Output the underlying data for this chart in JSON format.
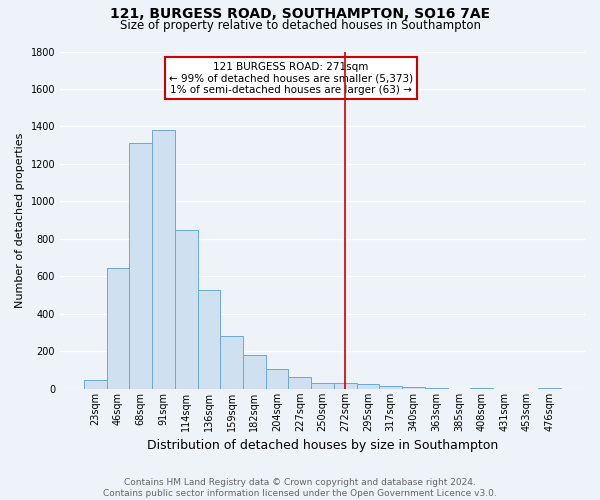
{
  "title": "121, BURGESS ROAD, SOUTHAMPTON, SO16 7AE",
  "subtitle": "Size of property relative to detached houses in Southampton",
  "xlabel": "Distribution of detached houses by size in Southampton",
  "ylabel": "Number of detached properties",
  "bar_labels": [
    "23sqm",
    "46sqm",
    "68sqm",
    "91sqm",
    "114sqm",
    "136sqm",
    "159sqm",
    "182sqm",
    "204sqm",
    "227sqm",
    "250sqm",
    "272sqm",
    "295sqm",
    "317sqm",
    "340sqm",
    "363sqm",
    "385sqm",
    "408sqm",
    "431sqm",
    "453sqm",
    "476sqm"
  ],
  "bar_values": [
    50,
    645,
    1310,
    1380,
    850,
    530,
    280,
    180,
    105,
    65,
    30,
    30,
    25,
    15,
    10,
    5,
    0,
    5,
    0,
    0,
    5
  ],
  "bar_color": "#cfe0f0",
  "bar_edge_color": "#6aaad4",
  "vline_x": 11.0,
  "vline_color": "#cc0000",
  "annotation_text": "121 BURGESS ROAD: 271sqm\n← 99% of detached houses are smaller (5,373)\n1% of semi-detached houses are larger (63) →",
  "annotation_box_facecolor": "#ffffff",
  "annotation_box_edgecolor": "#cc0000",
  "ylim": [
    0,
    1800
  ],
  "yticks": [
    0,
    200,
    400,
    600,
    800,
    1000,
    1200,
    1400,
    1600,
    1800
  ],
  "footer_line1": "Contains HM Land Registry data © Crown copyright and database right 2024.",
  "footer_line2": "Contains public sector information licensed under the Open Government Licence v3.0.",
  "bg_color": "#eef2f9",
  "grid_color": "#ffffff",
  "title_fontsize": 10,
  "subtitle_fontsize": 8.5,
  "xlabel_fontsize": 9,
  "ylabel_fontsize": 8,
  "tick_fontsize": 7,
  "footer_fontsize": 6.5,
  "annot_fontsize": 7.5
}
